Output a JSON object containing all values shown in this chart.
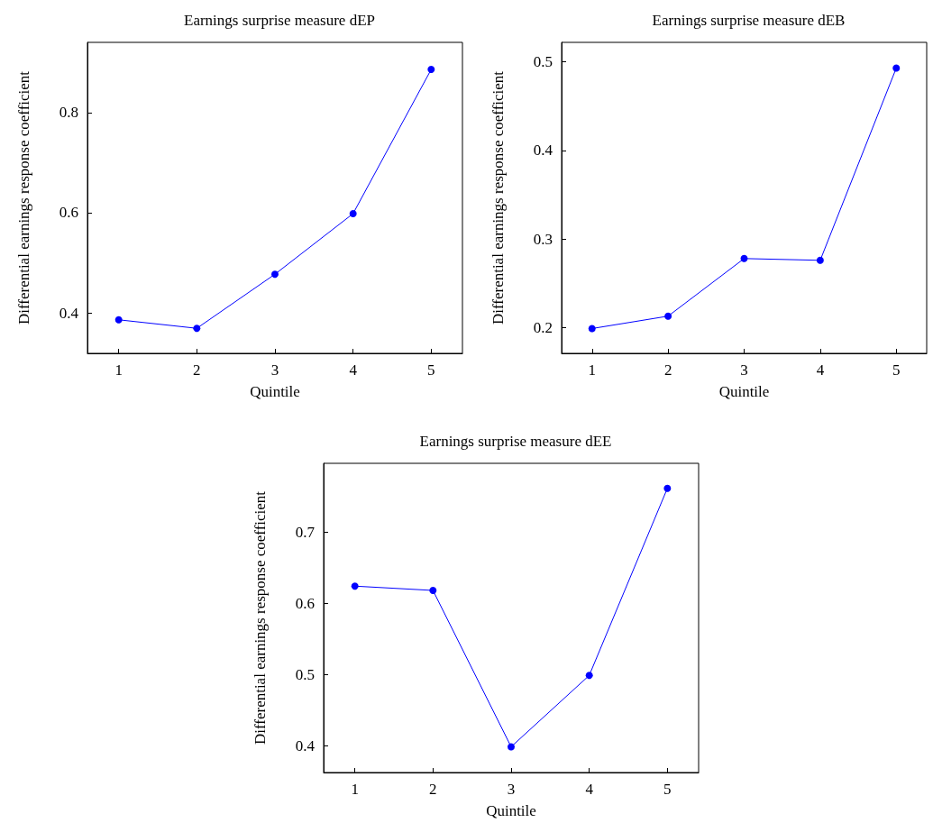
{
  "chart_data": [
    {
      "type": "line",
      "title": "Earnings surprise measure dEP",
      "xlabel": "Quintile",
      "ylabel": "Differential earnings response coefficient",
      "x": [
        1,
        2,
        3,
        4,
        5
      ],
      "values": [
        0.386,
        0.369,
        0.477,
        0.598,
        0.886
      ],
      "color": "#0000ff",
      "xlim": [
        0.6,
        5.4
      ],
      "xticks": [
        1,
        2,
        3,
        4,
        5
      ],
      "ylim": [
        0.319,
        0.94
      ],
      "yticks": [
        0.4,
        0.6,
        0.8
      ],
      "marker": "circle",
      "grid": false
    },
    {
      "type": "line",
      "title": "Earnings surprise measure dEB",
      "xlabel": "Quintile",
      "ylabel": "Differential earnings response coefficient",
      "x": [
        1,
        2,
        3,
        4,
        5
      ],
      "values": [
        0.199,
        0.213,
        0.278,
        0.276,
        0.493
      ],
      "color": "#0000ff",
      "xlim": [
        0.6,
        5.4
      ],
      "xticks": [
        1,
        2,
        3,
        4,
        5
      ],
      "ylim": [
        0.171,
        0.522
      ],
      "yticks": [
        0.2,
        0.3,
        0.4,
        0.5
      ],
      "marker": "circle",
      "grid": false
    },
    {
      "type": "line",
      "title": "Earnings surprise measure dEE",
      "xlabel": "Quintile",
      "ylabel": "Differential earnings response coefficient",
      "x": [
        1,
        2,
        3,
        4,
        5
      ],
      "values": [
        0.624,
        0.618,
        0.399,
        0.499,
        0.761
      ],
      "color": "#0000ff",
      "xlim": [
        0.6,
        5.4
      ],
      "xticks": [
        1,
        2,
        3,
        4,
        5
      ],
      "ylim": [
        0.363,
        0.796
      ],
      "yticks": [
        0.4,
        0.5,
        0.6,
        0.7
      ],
      "marker": "circle",
      "grid": false
    }
  ]
}
